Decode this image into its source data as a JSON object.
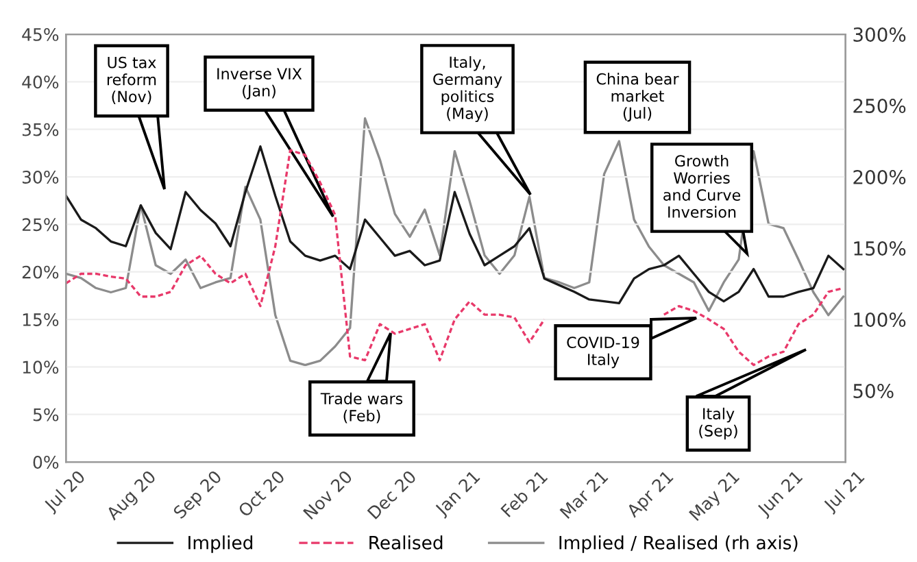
{
  "chart_data": {
    "type": "line",
    "x": [
      "2020-07-01",
      "2020-07-08",
      "2020-07-15",
      "2020-07-22",
      "2020-07-29",
      "2020-08-05",
      "2020-08-12",
      "2020-08-19",
      "2020-08-26",
      "2020-09-02",
      "2020-09-09",
      "2020-09-16",
      "2020-09-23",
      "2020-09-30",
      "2020-10-07",
      "2020-10-14",
      "2020-10-21",
      "2020-10-28",
      "2020-11-04",
      "2020-11-11",
      "2020-11-18",
      "2020-11-25",
      "2020-12-02",
      "2020-12-09",
      "2020-12-16",
      "2020-12-23",
      "2020-12-30",
      "2021-01-06",
      "2021-01-13",
      "2021-01-20",
      "2021-01-27",
      "2021-02-03",
      "2021-02-10",
      "2021-02-17",
      "2021-02-24",
      "2021-03-03",
      "2021-03-10",
      "2021-03-17",
      "2021-03-24",
      "2021-03-31",
      "2021-04-07",
      "2021-04-14",
      "2021-04-21",
      "2021-04-28",
      "2021-05-05",
      "2021-05-12",
      "2021-05-19",
      "2021-05-26",
      "2021-06-02",
      "2021-06-09",
      "2021-06-16",
      "2021-06-23",
      "2021-06-30"
    ],
    "series": [
      {
        "name": "Implied",
        "color": "#1a1a1a",
        "line_style": "solid",
        "values": [
          28.0,
          25.5,
          24.6,
          23.2,
          22.7,
          27.0,
          24.1,
          22.4,
          28.4,
          26.5,
          25.1,
          22.7,
          28.4,
          33.2,
          28.0,
          23.2,
          21.7,
          21.2,
          21.7,
          20.3,
          25.5,
          23.6,
          21.7,
          22.2,
          20.7,
          21.2,
          28.4,
          24.0,
          20.7,
          21.7,
          22.7,
          24.6,
          19.3,
          18.6,
          17.9,
          17.1,
          16.9,
          16.7,
          19.3,
          20.3,
          20.7,
          21.7,
          19.8,
          17.9,
          16.9,
          17.9,
          20.3,
          17.4,
          17.4,
          17.9,
          18.3,
          21.7,
          20.3
        ]
      },
      {
        "name": "Realised",
        "color": "#e8396a",
        "line_style": "dashed",
        "values": [
          18.8,
          19.8,
          19.8,
          19.5,
          19.3,
          17.4,
          17.4,
          17.9,
          20.7,
          21.7,
          19.8,
          18.8,
          19.8,
          16.4,
          22.7,
          32.8,
          32.3,
          29.4,
          26.0,
          11.1,
          10.7,
          14.5,
          13.5,
          14.0,
          14.5,
          10.7,
          15.0,
          16.9,
          15.5,
          15.5,
          15.2,
          12.6,
          15.0,
          null,
          null,
          null,
          null,
          null,
          null,
          null,
          15.5,
          16.4,
          15.9,
          15.0,
          14.0,
          11.6,
          10.2,
          11.1,
          11.6,
          14.5,
          15.5,
          17.9,
          18.3
        ]
      },
      {
        "name": "Implied / Realised (rh axis)",
        "color": "#8c8c8c",
        "line_style": "solid",
        "axis": "y2",
        "values": [
          132,
          129,
          122,
          119,
          122,
          180,
          138,
          132,
          142,
          122,
          126,
          129,
          193,
          170,
          103,
          71,
          68,
          71,
          81,
          94,
          241,
          212,
          174,
          158,
          177,
          145,
          218,
          183,
          145,
          132,
          145,
          186,
          129,
          126,
          122,
          126,
          202,
          225,
          170,
          151,
          138,
          132,
          126,
          106,
          126,
          142,
          218,
          167,
          164,
          142,
          119,
          103,
          116
        ]
      }
    ],
    "xlim": [
      "2020-07-01",
      "2021-07-01"
    ],
    "xticks": [
      {
        "value": "2020-07-01",
        "label": "Jul 20"
      },
      {
        "value": "2020-08-01",
        "label": "Aug 20"
      },
      {
        "value": "2020-09-01",
        "label": "Sep 20"
      },
      {
        "value": "2020-10-01",
        "label": "Oct 20"
      },
      {
        "value": "2020-11-01",
        "label": "Nov 20"
      },
      {
        "value": "2020-12-01",
        "label": "Dec 20"
      },
      {
        "value": "2021-01-01",
        "label": "Jan 21"
      },
      {
        "value": "2021-02-01",
        "label": "Feb 21"
      },
      {
        "value": "2021-03-01",
        "label": "Mar 21"
      },
      {
        "value": "2021-04-01",
        "label": "Apr 21"
      },
      {
        "value": "2021-05-01",
        "label": "May 21"
      },
      {
        "value": "2021-06-01",
        "label": "Jun 21"
      },
      {
        "value": "2021-07-01",
        "label": "Jul 21"
      }
    ],
    "ylim": [
      0,
      45
    ],
    "yticks": [
      {
        "value": 0,
        "label": "0%"
      },
      {
        "value": 5,
        "label": "5%"
      },
      {
        "value": 10,
        "label": "10%"
      },
      {
        "value": 15,
        "label": "15%"
      },
      {
        "value": 20,
        "label": "20%"
      },
      {
        "value": 25,
        "label": "25%"
      },
      {
        "value": 30,
        "label": "30%"
      },
      {
        "value": 35,
        "label": "35%"
      },
      {
        "value": 40,
        "label": "40%"
      },
      {
        "value": 45,
        "label": "45%"
      }
    ],
    "y2lim": [
      0,
      300
    ],
    "y2ticks": [
      {
        "value": 0,
        "label": null
      },
      {
        "value": 50,
        "label": "50%"
      },
      {
        "value": 100,
        "label": "100%"
      },
      {
        "value": 150,
        "label": "150%"
      },
      {
        "value": 200,
        "label": "200%"
      },
      {
        "value": 250,
        "label": "250%"
      },
      {
        "value": 300,
        "label": "300%"
      }
    ],
    "grid": "y",
    "legend": "bottom",
    "annotations": [
      "US tax\nreform\n(Nov)",
      "Inverse VIX\n(Jan)",
      "Italy,\nGermany\npolitics\n(May)",
      "China bear\nmarket\n(Jul)",
      "Growth\nWorries\nand Curve\nInversion",
      "COVID-19\nItaly",
      "Trade wars\n(Feb)",
      "Italy\n(Sep)"
    ]
  }
}
